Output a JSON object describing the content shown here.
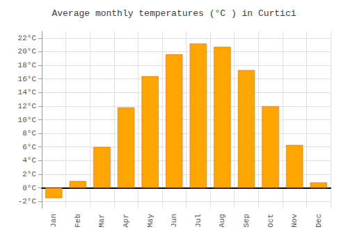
{
  "chart_data": {
    "type": "bar",
    "title": "Average monthly temperatures (°C ) in Curtici",
    "categories": [
      "Jan",
      "Feb",
      "Mar",
      "Apr",
      "May",
      "Jun",
      "Jul",
      "Aug",
      "Sep",
      "Oct",
      "Nov",
      "Dec"
    ],
    "values": [
      -1.5,
      1.0,
      6.0,
      11.8,
      16.4,
      19.6,
      21.2,
      20.7,
      17.3,
      12.0,
      6.3,
      0.8
    ],
    "color": "#FFA500",
    "ylim": [
      -3,
      23
    ],
    "yticks": [
      {
        "value": -2,
        "label": "-2°C"
      },
      {
        "value": 0,
        "label": "0°C"
      },
      {
        "value": 2,
        "label": "2°C"
      },
      {
        "value": 4,
        "label": "4°C"
      },
      {
        "value": 6,
        "label": "6°C"
      },
      {
        "value": 8,
        "label": "8°C"
      },
      {
        "value": 10,
        "label": "10°C"
      },
      {
        "value": 12,
        "label": "12°C"
      },
      {
        "value": 14,
        "label": "14°C"
      },
      {
        "value": 16,
        "label": "16°C"
      },
      {
        "value": 18,
        "label": "18°C"
      },
      {
        "value": 20,
        "label": "20°C"
      },
      {
        "value": 22,
        "label": "22°C"
      }
    ],
    "grid": true
  }
}
